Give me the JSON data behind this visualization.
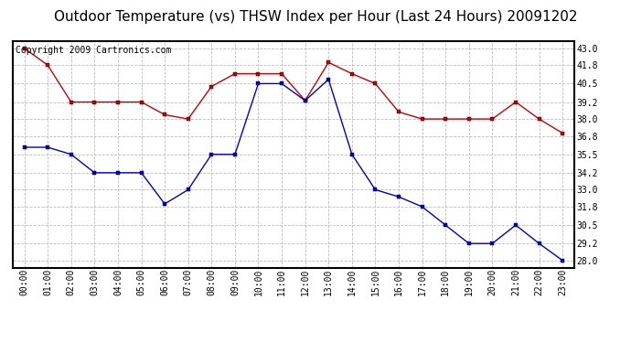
{
  "title": "Outdoor Temperature (vs) THSW Index per Hour (Last 24 Hours) 20091202",
  "copyright_text": "Copyright 2009 Cartronics.com",
  "hours": [
    0,
    1,
    2,
    3,
    4,
    5,
    6,
    7,
    8,
    9,
    10,
    11,
    12,
    13,
    14,
    15,
    16,
    17,
    18,
    19,
    20,
    21,
    22,
    23
  ],
  "hour_labels": [
    "00:00",
    "01:00",
    "02:00",
    "03:00",
    "04:00",
    "05:00",
    "06:00",
    "07:00",
    "08:00",
    "09:00",
    "10:00",
    "11:00",
    "12:00",
    "13:00",
    "14:00",
    "15:00",
    "16:00",
    "17:00",
    "18:00",
    "19:00",
    "20:00",
    "21:00",
    "22:00",
    "23:00"
  ],
  "red_line": [
    43.0,
    41.8,
    39.2,
    39.2,
    39.2,
    39.2,
    38.3,
    38.0,
    40.3,
    41.2,
    41.2,
    41.2,
    39.3,
    42.0,
    41.2,
    40.5,
    38.5,
    38.0,
    38.0,
    38.0,
    38.0,
    39.2,
    38.0,
    37.0
  ],
  "blue_line": [
    36.0,
    36.0,
    35.5,
    34.2,
    34.2,
    34.2,
    32.0,
    33.0,
    35.5,
    35.5,
    40.5,
    40.5,
    39.3,
    40.8,
    35.5,
    33.0,
    32.5,
    31.8,
    30.5,
    29.2,
    29.2,
    30.5,
    29.2,
    28.0
  ],
  "ylim": [
    27.5,
    43.5
  ],
  "yticks": [
    28.0,
    29.2,
    30.5,
    31.8,
    33.0,
    34.2,
    35.5,
    36.8,
    38.0,
    39.2,
    40.5,
    41.8,
    43.0
  ],
  "red_color": "#cc0000",
  "blue_color": "#0000cc",
  "background_color": "#ffffff",
  "grid_color": "#bbbbbb",
  "title_fontsize": 11,
  "copyright_fontsize": 7,
  "figsize": [
    6.9,
    3.75
  ],
  "dpi": 100
}
